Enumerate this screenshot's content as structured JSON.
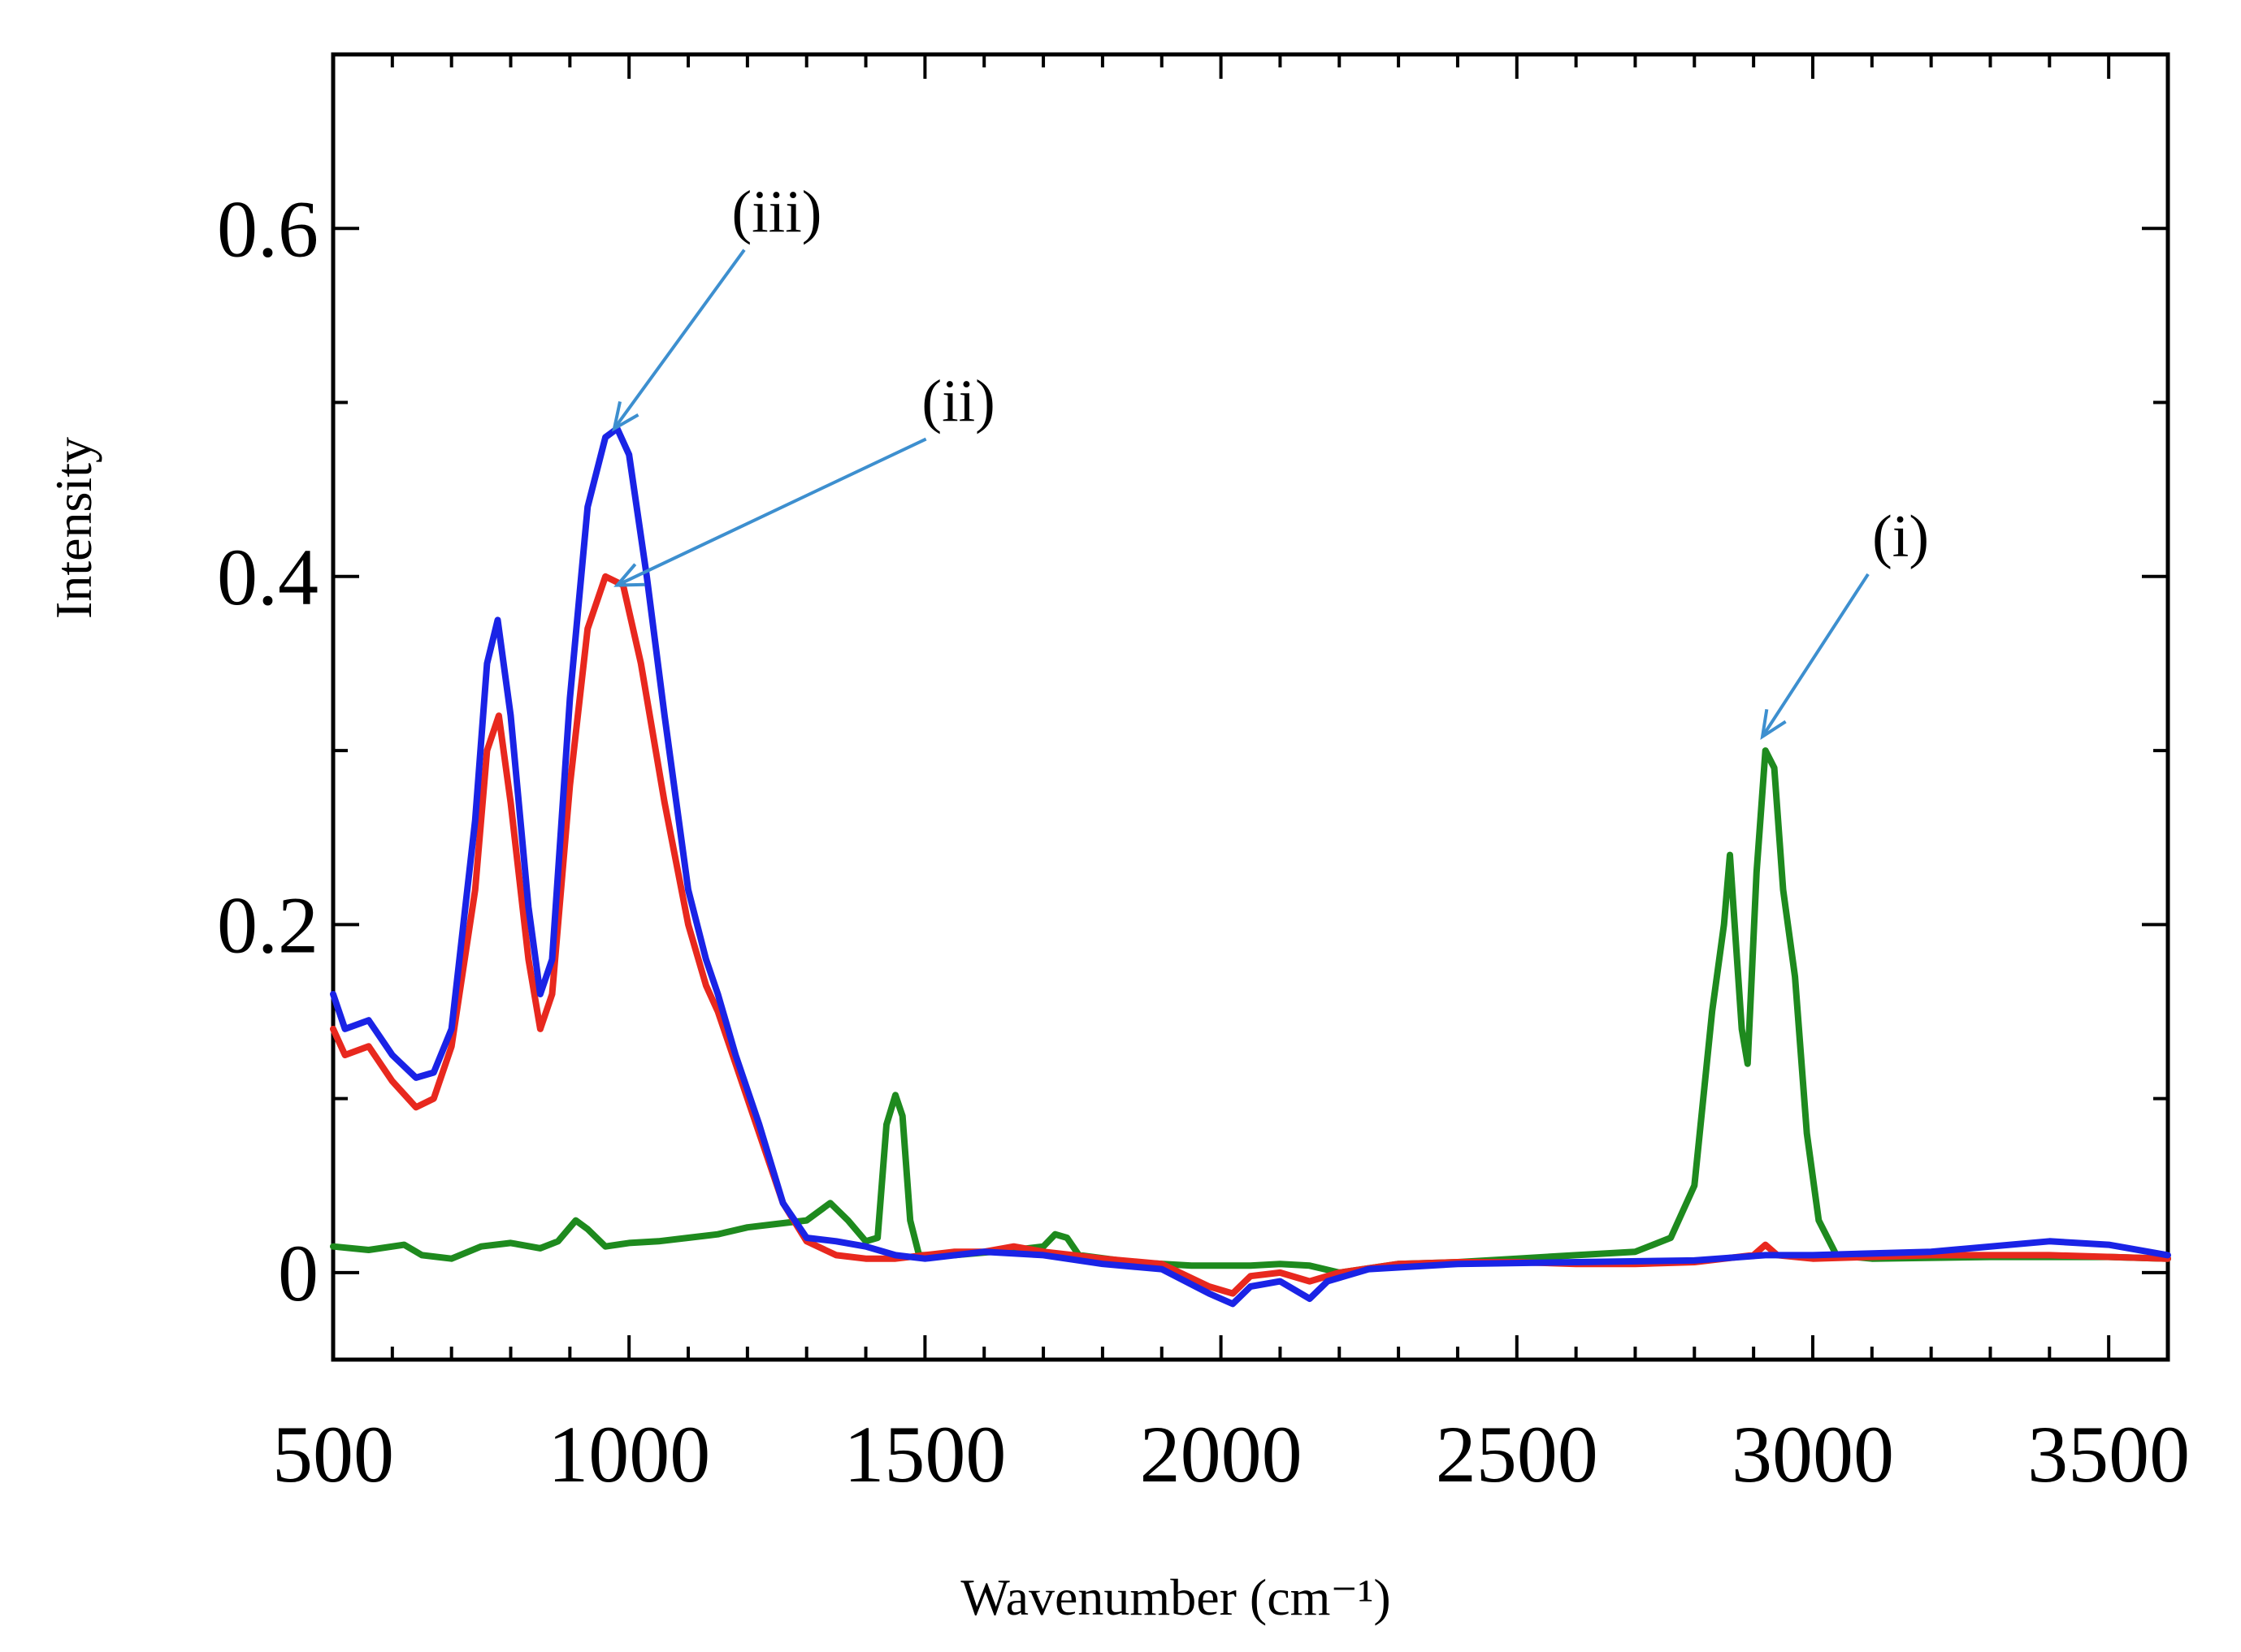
{
  "chart_data": {
    "type": "line",
    "title": "",
    "xlabel": "Wavenumber (cm⁻¹)",
    "ylabel": "Intensity",
    "xlim": [
      500,
      3600
    ],
    "ylim": [
      -0.05,
      0.7
    ],
    "grid": false,
    "x_ticks": [
      500,
      1000,
      1500,
      2000,
      2500,
      3000,
      3500
    ],
    "x_tick_labels": [
      "500",
      "1000",
      "1500",
      "2000",
      "2500",
      "3000",
      "3500"
    ],
    "y_ticks": [
      0,
      0.2,
      0.4,
      0.6
    ],
    "y_tick_labels": [
      "0",
      "0.2",
      "0.4",
      "0.6"
    ],
    "series": [
      {
        "name": "(i)",
        "color": "#1e8a1e",
        "points": [
          [
            500,
            0.015
          ],
          [
            560,
            0.013
          ],
          [
            620,
            0.016
          ],
          [
            650,
            0.01
          ],
          [
            700,
            0.008
          ],
          [
            750,
            0.015
          ],
          [
            800,
            0.017
          ],
          [
            850,
            0.014
          ],
          [
            880,
            0.018
          ],
          [
            910,
            0.03
          ],
          [
            930,
            0.025
          ],
          [
            960,
            0.015
          ],
          [
            1000,
            0.017
          ],
          [
            1050,
            0.018
          ],
          [
            1100,
            0.02
          ],
          [
            1150,
            0.022
          ],
          [
            1200,
            0.026
          ],
          [
            1250,
            0.028
          ],
          [
            1300,
            0.03
          ],
          [
            1340,
            0.04
          ],
          [
            1370,
            0.03
          ],
          [
            1400,
            0.018
          ],
          [
            1420,
            0.02
          ],
          [
            1435,
            0.085
          ],
          [
            1450,
            0.102
          ],
          [
            1462,
            0.09
          ],
          [
            1475,
            0.03
          ],
          [
            1490,
            0.01
          ],
          [
            1550,
            0.01
          ],
          [
            1650,
            0.013
          ],
          [
            1700,
            0.015
          ],
          [
            1720,
            0.022
          ],
          [
            1740,
            0.02
          ],
          [
            1760,
            0.01
          ],
          [
            1850,
            0.006
          ],
          [
            1950,
            0.004
          ],
          [
            2050,
            0.004
          ],
          [
            2100,
            0.005
          ],
          [
            2150,
            0.004
          ],
          [
            2200,
            0.0
          ],
          [
            2300,
            0.005
          ],
          [
            2400,
            0.006
          ],
          [
            2500,
            0.008
          ],
          [
            2600,
            0.01
          ],
          [
            2700,
            0.012
          ],
          [
            2760,
            0.02
          ],
          [
            2800,
            0.05
          ],
          [
            2830,
            0.15
          ],
          [
            2850,
            0.2
          ],
          [
            2860,
            0.24
          ],
          [
            2870,
            0.19
          ],
          [
            2880,
            0.14
          ],
          [
            2890,
            0.12
          ],
          [
            2905,
            0.23
          ],
          [
            2920,
            0.3
          ],
          [
            2935,
            0.29
          ],
          [
            2950,
            0.22
          ],
          [
            2970,
            0.17
          ],
          [
            2990,
            0.08
          ],
          [
            3010,
            0.03
          ],
          [
            3040,
            0.01
          ],
          [
            3100,
            0.008
          ],
          [
            3300,
            0.009
          ],
          [
            3500,
            0.009
          ],
          [
            3600,
            0.008
          ]
        ]
      },
      {
        "name": "(ii)",
        "color": "#e8281e",
        "points": [
          [
            500,
            0.14
          ],
          [
            520,
            0.125
          ],
          [
            560,
            0.13
          ],
          [
            600,
            0.11
          ],
          [
            640,
            0.095
          ],
          [
            670,
            0.1
          ],
          [
            700,
            0.13
          ],
          [
            740,
            0.22
          ],
          [
            760,
            0.3
          ],
          [
            780,
            0.32
          ],
          [
            800,
            0.27
          ],
          [
            830,
            0.18
          ],
          [
            850,
            0.14
          ],
          [
            870,
            0.16
          ],
          [
            900,
            0.28
          ],
          [
            930,
            0.37
          ],
          [
            960,
            0.4
          ],
          [
            990,
            0.395
          ],
          [
            1020,
            0.35
          ],
          [
            1060,
            0.27
          ],
          [
            1100,
            0.2
          ],
          [
            1130,
            0.165
          ],
          [
            1150,
            0.15
          ],
          [
            1180,
            0.12
          ],
          [
            1220,
            0.08
          ],
          [
            1260,
            0.04
          ],
          [
            1300,
            0.018
          ],
          [
            1350,
            0.01
          ],
          [
            1400,
            0.008
          ],
          [
            1450,
            0.008
          ],
          [
            1500,
            0.01
          ],
          [
            1550,
            0.012
          ],
          [
            1600,
            0.012
          ],
          [
            1650,
            0.015
          ],
          [
            1700,
            0.012
          ],
          [
            1750,
            0.01
          ],
          [
            1800,
            0.008
          ],
          [
            1900,
            0.005
          ],
          [
            1980,
            -0.008
          ],
          [
            2020,
            -0.012
          ],
          [
            2050,
            -0.002
          ],
          [
            2100,
            0.0
          ],
          [
            2150,
            -0.005
          ],
          [
            2200,
            0.0
          ],
          [
            2300,
            0.005
          ],
          [
            2400,
            0.006
          ],
          [
            2500,
            0.006
          ],
          [
            2600,
            0.005
          ],
          [
            2700,
            0.005
          ],
          [
            2800,
            0.006
          ],
          [
            2900,
            0.01
          ],
          [
            2920,
            0.016
          ],
          [
            2940,
            0.01
          ],
          [
            3000,
            0.008
          ],
          [
            3200,
            0.01
          ],
          [
            3400,
            0.01
          ],
          [
            3600,
            0.008
          ]
        ]
      },
      {
        "name": "(iii)",
        "color": "#1a23e6",
        "points": [
          [
            500,
            0.16
          ],
          [
            520,
            0.14
          ],
          [
            560,
            0.145
          ],
          [
            600,
            0.125
          ],
          [
            640,
            0.112
          ],
          [
            670,
            0.115
          ],
          [
            700,
            0.14
          ],
          [
            740,
            0.26
          ],
          [
            760,
            0.35
          ],
          [
            778,
            0.375
          ],
          [
            800,
            0.32
          ],
          [
            830,
            0.21
          ],
          [
            850,
            0.16
          ],
          [
            870,
            0.18
          ],
          [
            900,
            0.33
          ],
          [
            930,
            0.44
          ],
          [
            960,
            0.48
          ],
          [
            980,
            0.485
          ],
          [
            1000,
            0.47
          ],
          [
            1030,
            0.4
          ],
          [
            1060,
            0.32
          ],
          [
            1100,
            0.22
          ],
          [
            1130,
            0.18
          ],
          [
            1150,
            0.16
          ],
          [
            1180,
            0.125
          ],
          [
            1220,
            0.085
          ],
          [
            1260,
            0.04
          ],
          [
            1300,
            0.02
          ],
          [
            1350,
            0.018
          ],
          [
            1400,
            0.015
          ],
          [
            1450,
            0.01
          ],
          [
            1500,
            0.008
          ],
          [
            1600,
            0.012
          ],
          [
            1700,
            0.01
          ],
          [
            1800,
            0.005
          ],
          [
            1900,
            0.002
          ],
          [
            1980,
            -0.012
          ],
          [
            2020,
            -0.018
          ],
          [
            2050,
            -0.008
          ],
          [
            2100,
            -0.005
          ],
          [
            2150,
            -0.015
          ],
          [
            2180,
            -0.005
          ],
          [
            2250,
            0.002
          ],
          [
            2400,
            0.005
          ],
          [
            2600,
            0.006
          ],
          [
            2800,
            0.007
          ],
          [
            2920,
            0.01
          ],
          [
            3000,
            0.01
          ],
          [
            3200,
            0.012
          ],
          [
            3400,
            0.018
          ],
          [
            3500,
            0.016
          ],
          [
            3600,
            0.01
          ]
        ]
      }
    ],
    "annotations": [
      {
        "label": "(iii)",
        "target": [
          975,
          0.485
        ]
      },
      {
        "label": "(ii)",
        "target": [
          980,
          0.395
        ]
      },
      {
        "label": "(i)",
        "target": [
          2915,
          0.308
        ]
      }
    ]
  }
}
